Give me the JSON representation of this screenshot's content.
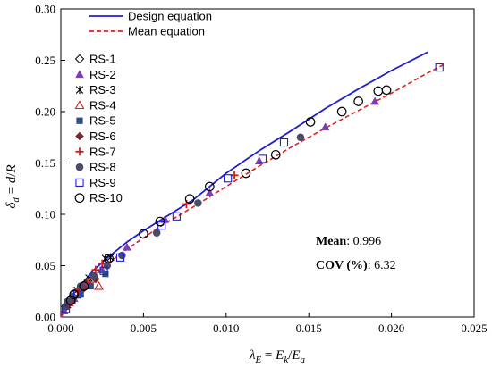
{
  "chart_data": {
    "type": "scatter",
    "x_axis": {
      "label": "λE = Ek/Ea",
      "range": [
        0,
        0.025
      ],
      "ticks": [
        "0.000",
        "0.005",
        "0.010",
        "0.015",
        "0.020",
        "0.025"
      ]
    },
    "y_axis": {
      "label": "δd = d/R",
      "range": [
        0,
        0.3
      ],
      "ticks": [
        "0.00",
        "0.05",
        "0.10",
        "0.15",
        "0.20",
        "0.25",
        "0.30"
      ]
    },
    "grid": false,
    "legend_position": "top-left",
    "lines": [
      {
        "name": "Design equation",
        "style": "solid",
        "color": "#1f1fd0",
        "points": [
          [
            0,
            0
          ],
          [
            0.001,
            0.027
          ],
          [
            0.002,
            0.046
          ],
          [
            0.003,
            0.06
          ],
          [
            0.004,
            0.073
          ],
          [
            0.005,
            0.084
          ],
          [
            0.006,
            0.094
          ],
          [
            0.008,
            0.114
          ],
          [
            0.01,
            0.14
          ],
          [
            0.012,
            0.162
          ],
          [
            0.014,
            0.182
          ],
          [
            0.016,
            0.203
          ],
          [
            0.018,
            0.222
          ],
          [
            0.02,
            0.24
          ],
          [
            0.0222,
            0.258
          ]
        ]
      },
      {
        "name": "Mean equation",
        "style": "dashed",
        "color": "#e02020",
        "points": [
          [
            0,
            0
          ],
          [
            0.001,
            0.024
          ],
          [
            0.002,
            0.04
          ],
          [
            0.003,
            0.054
          ],
          [
            0.004,
            0.066
          ],
          [
            0.005,
            0.077
          ],
          [
            0.006,
            0.088
          ],
          [
            0.008,
            0.107
          ],
          [
            0.01,
            0.127
          ],
          [
            0.012,
            0.147
          ],
          [
            0.014,
            0.166
          ],
          [
            0.016,
            0.184
          ],
          [
            0.018,
            0.201
          ],
          [
            0.02,
            0.218
          ],
          [
            0.022,
            0.236
          ],
          [
            0.0233,
            0.247
          ]
        ]
      }
    ],
    "series": [
      {
        "name": "RS-1",
        "marker": "diamond-open",
        "color": "#000000",
        "points": [
          [
            0.0003,
            0.01
          ],
          [
            0.0006,
            0.018
          ],
          [
            0.0009,
            0.024
          ],
          [
            0.0012,
            0.028
          ],
          [
            0.0016,
            0.034
          ]
        ]
      },
      {
        "name": "RS-2",
        "marker": "triangle-filled",
        "color": "#7b3fb5",
        "points": [
          [
            0.0002,
            0.006
          ],
          [
            0.0008,
            0.018
          ],
          [
            0.0015,
            0.032
          ],
          [
            0.0025,
            0.046
          ],
          [
            0.004,
            0.068
          ],
          [
            0.0063,
            0.095
          ],
          [
            0.009,
            0.121
          ],
          [
            0.012,
            0.152
          ],
          [
            0.016,
            0.185
          ],
          [
            0.019,
            0.21
          ]
        ]
      },
      {
        "name": "RS-3",
        "marker": "asterisk",
        "color": "#000000",
        "points": [
          [
            0.0004,
            0.012
          ],
          [
            0.001,
            0.026
          ],
          [
            0.0017,
            0.038
          ],
          [
            0.0027,
            0.057
          ],
          [
            0.003,
            0.058
          ]
        ]
      },
      {
        "name": "RS-4",
        "marker": "triangle-open",
        "color": "#d02020",
        "points": [
          [
            0.0005,
            0.014
          ],
          [
            0.0009,
            0.022
          ],
          [
            0.0013,
            0.03
          ],
          [
            0.0019,
            0.037
          ],
          [
            0.0023,
            0.03
          ]
        ]
      },
      {
        "name": "RS-5",
        "marker": "square-filled",
        "color": "#2f4f7f",
        "points": [
          [
            0.0003,
            0.01
          ],
          [
            0.0007,
            0.016
          ],
          [
            0.0012,
            0.022
          ],
          [
            0.0018,
            0.03
          ],
          [
            0.0027,
            0.042
          ]
        ]
      },
      {
        "name": "RS-6",
        "marker": "diamond-filled",
        "color": "#7a2a2a",
        "points": [
          [
            0.0004,
            0.012
          ],
          [
            0.0008,
            0.019
          ],
          [
            0.0014,
            0.028
          ],
          [
            0.0021,
            0.037
          ]
        ]
      },
      {
        "name": "RS-7",
        "marker": "plus",
        "color": "#d02020",
        "points": [
          [
            0.0005,
            0.014
          ],
          [
            0.0011,
            0.027
          ],
          [
            0.0016,
            0.034
          ],
          [
            0.0021,
            0.046
          ],
          [
            0.0025,
            0.052
          ],
          [
            0.0076,
            0.11
          ],
          [
            0.0105,
            0.138
          ]
        ]
      },
      {
        "name": "RS-8",
        "marker": "circle-filled",
        "color": "#4a4a6a",
        "points": [
          [
            0.0004,
            0.015
          ],
          [
            0.0007,
            0.02
          ],
          [
            0.0012,
            0.03
          ],
          [
            0.002,
            0.04
          ],
          [
            0.0028,
            0.05
          ],
          [
            0.0037,
            0.06
          ],
          [
            0.0058,
            0.082
          ],
          [
            0.0083,
            0.111
          ],
          [
            0.0145,
            0.175
          ]
        ]
      },
      {
        "name": "RS-9",
        "marker": "square-open",
        "color": "#1f1fd0",
        "points": [
          [
            0.0003,
            0.008
          ],
          [
            0.001,
            0.022
          ],
          [
            0.0026,
            0.045
          ],
          [
            0.0036,
            0.058
          ],
          [
            0.0061,
            0.089
          ],
          [
            0.007,
            0.098
          ],
          [
            0.0101,
            0.135
          ],
          [
            0.0122,
            0.154
          ],
          [
            0.0135,
            0.17
          ],
          [
            0.0229,
            0.243
          ]
        ]
      },
      {
        "name": "RS-10",
        "marker": "circle-open",
        "color": "#000000",
        "points": [
          [
            0.0006,
            0.016
          ],
          [
            0.0008,
            0.022
          ],
          [
            0.0014,
            0.03
          ],
          [
            0.0029,
            0.057
          ],
          [
            0.005,
            0.081
          ],
          [
            0.006,
            0.093
          ],
          [
            0.0078,
            0.115
          ],
          [
            0.009,
            0.127
          ],
          [
            0.0112,
            0.14
          ],
          [
            0.013,
            0.158
          ],
          [
            0.0151,
            0.19
          ],
          [
            0.017,
            0.2
          ],
          [
            0.018,
            0.21
          ],
          [
            0.0192,
            0.22
          ],
          [
            0.0197,
            0.221
          ]
        ]
      }
    ],
    "annotations": [
      {
        "label": "Mean",
        "value": ": 0.996"
      },
      {
        "label": "COV (%)",
        "value": ": 6.32"
      }
    ]
  }
}
